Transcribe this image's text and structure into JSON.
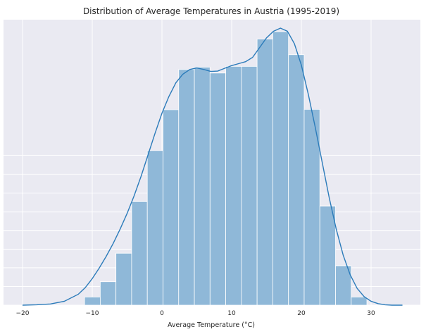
{
  "chart_data": {
    "type": "histogram",
    "title": "Distribution of Average Temperatures in Austria (1995-2019)",
    "xlabel": "Average Temperature (°C)",
    "ylabel": "",
    "xlim": [
      -20.5,
      34.5
    ],
    "xticks": [
      -20,
      -10,
      0,
      10,
      20,
      30
    ],
    "grid": true,
    "density_scale_max": 0.0335,
    "bins": {
      "start": -11.1,
      "width": 2.25,
      "density": [
        0.0021,
        0.006,
        0.0133,
        0.0266,
        0.0396,
        0.0501,
        0.0604,
        0.061,
        0.0595,
        0.0612,
        0.0612,
        0.0682,
        0.0701,
        0.0642,
        0.0502,
        0.0254,
        0.0101,
        0.0021
      ]
    },
    "kde": {
      "x": [
        -20,
        -18,
        -16,
        -14,
        -12,
        -11,
        -10,
        -9,
        -8,
        -7,
        -6,
        -5,
        -4,
        -3,
        -2,
        -1,
        0,
        1,
        2,
        3,
        4,
        5,
        6,
        7,
        8,
        9,
        10,
        11,
        12,
        13,
        14,
        15,
        16,
        17,
        18,
        19,
        20,
        21,
        22,
        23,
        24,
        25,
        26,
        27,
        28,
        29,
        30,
        31,
        32,
        33,
        34.5
      ],
      "density": [
        0.0,
        0.0001,
        0.0003,
        0.001,
        0.0028,
        0.0045,
        0.0068,
        0.0095,
        0.0125,
        0.0158,
        0.0195,
        0.0235,
        0.028,
        0.033,
        0.0385,
        0.044,
        0.0492,
        0.0535,
        0.057,
        0.0592,
        0.0604,
        0.0608,
        0.0604,
        0.0599,
        0.06,
        0.0607,
        0.0614,
        0.0619,
        0.0624,
        0.0635,
        0.066,
        0.0685,
        0.0702,
        0.071,
        0.0702,
        0.067,
        0.0615,
        0.054,
        0.0455,
        0.0365,
        0.0275,
        0.0195,
        0.0128,
        0.0078,
        0.0043,
        0.0022,
        0.001,
        0.0004,
        0.0001,
        0.0,
        0.0
      ]
    },
    "colors": {
      "background": "#eaeaf2",
      "grid": "#ffffff",
      "bar": "#8fb8d8",
      "bar_edge": "#ffffff",
      "kde_line": "#2b7bba"
    }
  }
}
